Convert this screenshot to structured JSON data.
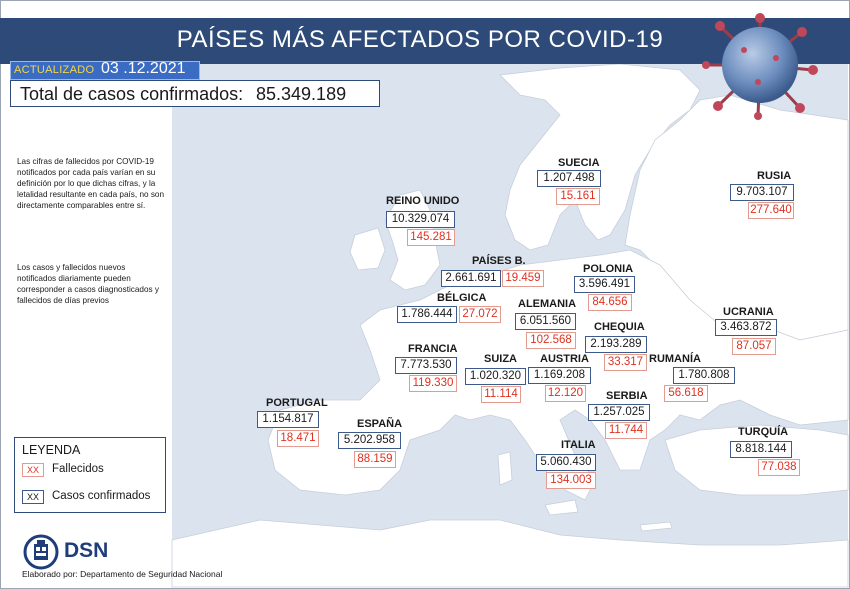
{
  "header": {
    "title": "PAÍSES MÁS AFECTADOS POR COVID-19",
    "updated_label": "ACTUALIZADO",
    "updated_date": "03 .12.2021",
    "total_label": "Total de casos confirmados:",
    "total_value": "85.349.189"
  },
  "notes": {
    "note1": "Las cifras de fallecidos por COVID-19 notificados por cada país varían en su definición por lo que dichas cifras, y la letalidad resultante en cada país, no son directamente comparables entre sí.",
    "note2": "Los casos y fallecidos nuevos notificados diariamente pueden corresponder a casos diagnosticados y fallecidos de días previos"
  },
  "legend": {
    "title": "LEYENDA",
    "deaths_swatch": "XX",
    "deaths_label": "Fallecidos",
    "cases_swatch": "XX",
    "cases_label": "Casos confirmados"
  },
  "countries": {
    "suecia": {
      "name": "SUECIA",
      "cases": "1.207.498",
      "deaths": "15.161"
    },
    "rusia": {
      "name": "RUSIA",
      "cases": "9.703.107",
      "deaths": "277.640"
    },
    "reinounido": {
      "name": "REINO UNIDO",
      "cases": "10.329.074",
      "deaths": "145.281"
    },
    "paisesb": {
      "name": "PAÍSES B.",
      "cases": "2.661.691",
      "deaths": "19.459"
    },
    "polonia": {
      "name": "POLONIA",
      "cases": "3.596.491",
      "deaths": "84.656"
    },
    "belgica": {
      "name": "BÉLGICA",
      "cases": "1.786.444",
      "deaths": "27.072"
    },
    "alemania": {
      "name": "ALEMANIA",
      "cases": "6.051.560",
      "deaths": "102.568"
    },
    "ucrania": {
      "name": "UCRANIA",
      "cases": "3.463.872",
      "deaths": "87.057"
    },
    "chequia": {
      "name": "CHEQUIA",
      "cases": "2.193.289",
      "deaths": "33.317"
    },
    "francia": {
      "name": "FRANCIA",
      "cases": "7.773.530",
      "deaths": "119.330"
    },
    "suiza": {
      "name": "SUIZA",
      "cases": "1.020.320",
      "deaths": "11.114"
    },
    "austria": {
      "name": "AUSTRIA",
      "cases": "1.169.208",
      "deaths": "12.120"
    },
    "rumania": {
      "name": "RUMANÍA",
      "cases": "1.780.808",
      "deaths": "56.618"
    },
    "portugal": {
      "name": "PORTUGAL",
      "cases": "1.154.817",
      "deaths": "18.471"
    },
    "serbia": {
      "name": "SERBIA",
      "cases": "1.257.025",
      "deaths": "11.744"
    },
    "espana": {
      "name": "ESPAÑA",
      "cases": "5.202.958",
      "deaths": "88.159"
    },
    "turquia": {
      "name": "TURQUÍA",
      "cases": "8.818.144",
      "deaths": "77.038"
    },
    "italia": {
      "name": "ITALIA",
      "cases": "5.060.430",
      "deaths": "134.003"
    }
  },
  "branding": {
    "logo_text": "DSN",
    "footer": "Elaborado por: Departamento de Seguridad Nacional"
  },
  "colors": {
    "sea": "#dbe3ee",
    "land": "#ffffff",
    "title_bar": "#2e4a78",
    "cases_border": "#3d5a8a",
    "deaths_text": "#e0301e",
    "deaths_border": "#e39a8f",
    "updated_label": "#f2d64b"
  }
}
